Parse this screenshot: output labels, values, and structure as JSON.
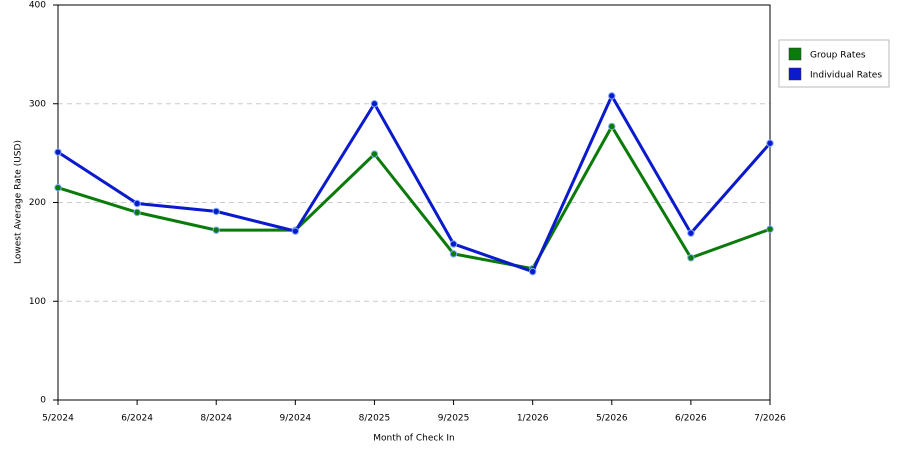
{
  "chart_data": {
    "type": "line",
    "x_label": "Month of Check In",
    "y_label": "Lowest Average Rate (USD)",
    "categories": [
      "5/2024",
      "6/2024",
      "8/2024",
      "9/2024",
      "8/2025",
      "9/2025",
      "1/2026",
      "5/2026",
      "6/2026",
      "7/2026"
    ],
    "series": [
      {
        "name": "Group Rates",
        "color": "#0a7a0a",
        "values": [
          215,
          190,
          172,
          172,
          249,
          148,
          133,
          277,
          144,
          173
        ]
      },
      {
        "name": "Individual Rates",
        "color": "#0a1acc",
        "values": [
          251,
          199,
          191,
          171,
          300,
          158,
          130,
          308,
          169,
          260
        ]
      }
    ],
    "ylim": [
      0,
      400
    ],
    "yticks": [
      0,
      100,
      200,
      300,
      400
    ],
    "grid": true,
    "legend": "right"
  }
}
